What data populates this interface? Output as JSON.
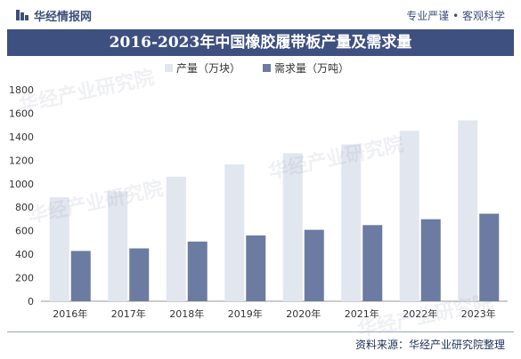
{
  "header": {
    "brand": "华经情报网",
    "slogan": "专业严谨 • 客观科学"
  },
  "footer": {
    "source": "资料来源：华经产业研究院整理"
  },
  "watermark": {
    "text": "华经产业研究院",
    "url": "www.huaon.com"
  },
  "colors": {
    "title_bg": "#3e5080",
    "series_production": "#e2e6ef",
    "series_demand": "#6b7ba1"
  },
  "chart_data": {
    "type": "bar",
    "title": "2016-2023年中国橡胶履带板产量及需求量",
    "categories": [
      "2016年",
      "2017年",
      "2018年",
      "2019年",
      "2020年",
      "2021年",
      "2022年",
      "2023年"
    ],
    "series": [
      {
        "name": "产量（万块）",
        "values": [
          885,
          935,
          1060,
          1165,
          1260,
          1335,
          1450,
          1540
        ]
      },
      {
        "name": "需求量（万吨）",
        "values": [
          428,
          450,
          508,
          560,
          608,
          648,
          698,
          745
        ]
      }
    ],
    "ylim": [
      0,
      1800
    ],
    "yticks": [
      0,
      200,
      400,
      600,
      800,
      1000,
      1200,
      1400,
      1600,
      1800
    ],
    "legend": "top-center",
    "grid": false
  }
}
